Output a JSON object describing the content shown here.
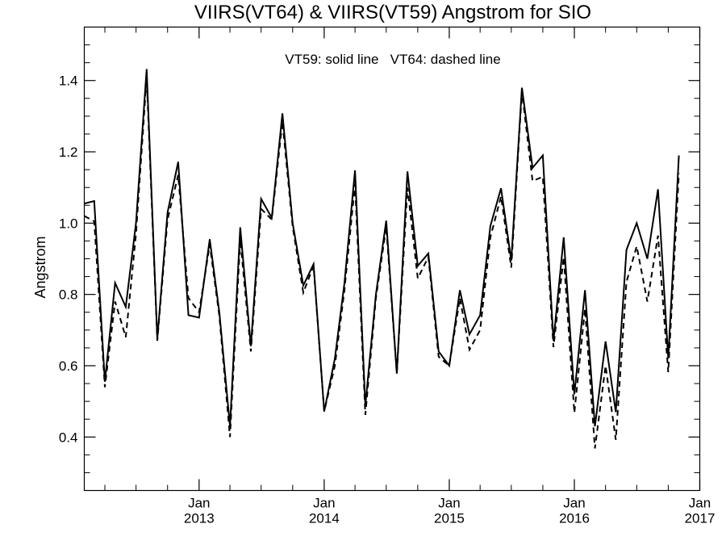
{
  "chart_data": {
    "type": "line",
    "title": "VIIRS(VT64) & VIIRS(VT59)  Angstrom for SIO",
    "annotation": "VT59: solid line   VT64: dashed line",
    "ylabel": "Angstrom",
    "xlabel": "",
    "ylim": [
      0.25,
      1.55
    ],
    "xlim": [
      "2012-02-01",
      "2017-01-01"
    ],
    "yticks": [
      {
        "value": 0.4,
        "label": "0.4"
      },
      {
        "value": 0.6,
        "label": "0.6"
      },
      {
        "value": 0.8,
        "label": "0.8"
      },
      {
        "value": 1.0,
        "label": "1.0"
      },
      {
        "value": 1.2,
        "label": "1.2"
      },
      {
        "value": 1.4,
        "label": "1.4"
      }
    ],
    "xticks": [
      {
        "date": "2013-01-01",
        "label": "Jan",
        "year": "2013"
      },
      {
        "date": "2014-01-01",
        "label": "Jan",
        "year": "2014"
      },
      {
        "date": "2015-01-01",
        "label": "Jan",
        "year": "2015"
      },
      {
        "date": "2016-01-01",
        "label": "Jan",
        "year": "2016"
      },
      {
        "date": "2017-01-01",
        "label": "Jan",
        "year": "2017"
      }
    ],
    "grid": false,
    "series": [
      {
        "name": "VT59",
        "style": "solid",
        "color": "#000000",
        "points": [
          [
            "2012-02-01",
            1.055
          ],
          [
            "2012-03-01",
            1.062
          ],
          [
            "2012-04-01",
            0.555
          ],
          [
            "2012-05-01",
            0.832
          ],
          [
            "2012-06-01",
            0.765
          ],
          [
            "2012-07-01",
            1.0
          ],
          [
            "2012-08-01",
            1.432
          ],
          [
            "2012-09-01",
            0.675
          ],
          [
            "2012-10-01",
            1.03
          ],
          [
            "2012-11-01",
            1.172
          ],
          [
            "2012-12-01",
            0.742
          ],
          [
            "2013-01-01",
            0.735
          ],
          [
            "2013-02-01",
            0.955
          ],
          [
            "2013-03-01",
            0.75
          ],
          [
            "2013-04-01",
            0.43
          ],
          [
            "2013-05-01",
            0.988
          ],
          [
            "2013-06-01",
            0.655
          ],
          [
            "2013-07-01",
            1.068
          ],
          [
            "2013-08-01",
            1.015
          ],
          [
            "2013-09-01",
            1.308
          ],
          [
            "2013-10-01",
            1.0
          ],
          [
            "2013-11-01",
            0.825
          ],
          [
            "2013-12-01",
            0.885
          ],
          [
            "2014-01-01",
            0.472
          ],
          [
            "2014-02-01",
            0.62
          ],
          [
            "2014-03-01",
            0.83
          ],
          [
            "2014-04-01",
            1.148
          ],
          [
            "2014-05-01",
            0.488
          ],
          [
            "2014-06-01",
            0.8
          ],
          [
            "2014-07-01",
            1.007
          ],
          [
            "2014-08-01",
            0.578
          ],
          [
            "2014-09-01",
            1.145
          ],
          [
            "2014-10-01",
            0.88
          ],
          [
            "2014-11-01",
            0.915
          ],
          [
            "2014-12-01",
            0.64
          ],
          [
            "2015-01-01",
            0.6
          ],
          [
            "2015-02-01",
            0.812
          ],
          [
            "2015-03-01",
            0.688
          ],
          [
            "2015-04-01",
            0.742
          ],
          [
            "2015-05-01",
            0.992
          ],
          [
            "2015-06-01",
            1.098
          ],
          [
            "2015-07-01",
            0.895
          ],
          [
            "2015-08-01",
            1.38
          ],
          [
            "2015-09-01",
            1.155
          ],
          [
            "2015-10-01",
            1.19
          ],
          [
            "2015-11-01",
            0.67
          ],
          [
            "2015-12-01",
            0.96
          ],
          [
            "2016-01-01",
            0.52
          ],
          [
            "2016-02-01",
            0.812
          ],
          [
            "2016-03-01",
            0.43
          ],
          [
            "2016-04-01",
            0.668
          ],
          [
            "2016-05-01",
            0.47
          ],
          [
            "2016-06-01",
            0.925
          ],
          [
            "2016-07-01",
            1.0
          ],
          [
            "2016-08-01",
            0.9
          ],
          [
            "2016-09-01",
            1.095
          ],
          [
            "2016-10-01",
            0.62
          ],
          [
            "2016-11-01",
            1.19
          ]
        ]
      },
      {
        "name": "VT64",
        "style": "dashed",
        "color": "#000000",
        "points": [
          [
            "2012-02-01",
            1.02
          ],
          [
            "2012-03-01",
            1.005
          ],
          [
            "2012-04-01",
            0.54
          ],
          [
            "2012-05-01",
            0.78
          ],
          [
            "2012-06-01",
            0.68
          ],
          [
            "2012-07-01",
            0.97
          ],
          [
            "2012-08-01",
            1.41
          ],
          [
            "2012-09-01",
            0.67
          ],
          [
            "2012-10-01",
            1.01
          ],
          [
            "2012-11-01",
            1.135
          ],
          [
            "2012-12-01",
            0.79
          ],
          [
            "2013-01-01",
            0.75
          ],
          [
            "2013-02-01",
            0.94
          ],
          [
            "2013-03-01",
            0.74
          ],
          [
            "2013-04-01",
            0.4
          ],
          [
            "2013-05-01",
            0.955
          ],
          [
            "2013-06-01",
            0.64
          ],
          [
            "2013-07-01",
            1.04
          ],
          [
            "2013-08-01",
            1.01
          ],
          [
            "2013-09-01",
            1.285
          ],
          [
            "2013-10-01",
            0.99
          ],
          [
            "2013-11-01",
            0.805
          ],
          [
            "2013-12-01",
            0.88
          ],
          [
            "2014-01-01",
            0.472
          ],
          [
            "2014-02-01",
            0.6
          ],
          [
            "2014-03-01",
            0.81
          ],
          [
            "2014-04-01",
            1.11
          ],
          [
            "2014-05-01",
            0.462
          ],
          [
            "2014-06-01",
            0.79
          ],
          [
            "2014-07-01",
            0.99
          ],
          [
            "2014-08-01",
            0.578
          ],
          [
            "2014-09-01",
            1.1
          ],
          [
            "2014-10-01",
            0.845
          ],
          [
            "2014-11-01",
            0.905
          ],
          [
            "2014-12-01",
            0.625
          ],
          [
            "2015-01-01",
            0.6
          ],
          [
            "2015-02-01",
            0.79
          ],
          [
            "2015-03-01",
            0.645
          ],
          [
            "2015-04-01",
            0.7
          ],
          [
            "2015-05-01",
            0.96
          ],
          [
            "2015-06-01",
            1.075
          ],
          [
            "2015-07-01",
            0.875
          ],
          [
            "2015-08-01",
            1.37
          ],
          [
            "2015-09-01",
            1.118
          ],
          [
            "2015-10-01",
            1.13
          ],
          [
            "2015-11-01",
            0.652
          ],
          [
            "2015-12-01",
            0.905
          ],
          [
            "2016-01-01",
            0.468
          ],
          [
            "2016-02-01",
            0.76
          ],
          [
            "2016-03-01",
            0.368
          ],
          [
            "2016-04-01",
            0.6
          ],
          [
            "2016-05-01",
            0.392
          ],
          [
            "2016-06-01",
            0.835
          ],
          [
            "2016-07-01",
            0.935
          ],
          [
            "2016-08-01",
            0.78
          ],
          [
            "2016-09-01",
            0.965
          ],
          [
            "2016-10-01",
            0.582
          ],
          [
            "2016-11-01",
            1.14
          ]
        ]
      }
    ]
  }
}
